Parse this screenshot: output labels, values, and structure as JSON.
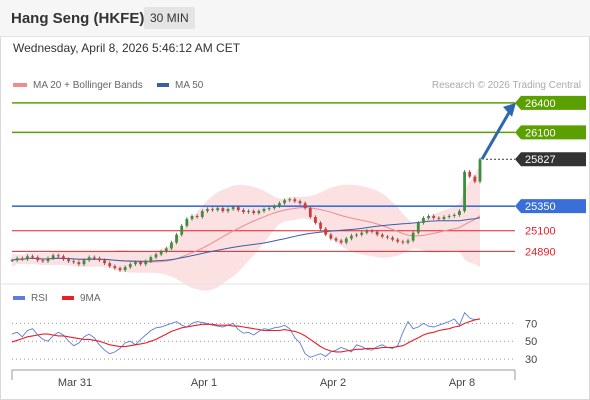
{
  "header": {
    "title": "Hang Seng (HKFE)",
    "interval": "30 MIN"
  },
  "datetime": "Wednesday, April 8, 2026 5:46:12 AM CET",
  "legend": {
    "ma20": {
      "label": "MA 20 + Bollinger Bands",
      "color": "#f08c8c"
    },
    "ma50": {
      "label": "MA 50",
      "color": "#3b5ea8"
    }
  },
  "attribution": "Research © 2026 Trading Central",
  "rsi_legend": {
    "rsi": {
      "label": "RSI",
      "color": "#5b7fd6"
    },
    "ma9": {
      "label": "9MA",
      "color": "#e8202a"
    }
  },
  "chart_data": [
    {
      "type": "candlestick",
      "y_range": [
        24650,
        26480
      ],
      "levels": [
        {
          "value": 26400,
          "label": "26400",
          "color": "#5aa000",
          "kind": "resistance"
        },
        {
          "value": 26100,
          "label": "26100",
          "color": "#5aa000",
          "kind": "resistance"
        },
        {
          "value": 25827,
          "label": "25827",
          "color": "#333333",
          "kind": "last"
        },
        {
          "value": 25350,
          "label": "25350",
          "color": "#3a6fd8",
          "kind": "pivot"
        },
        {
          "value": 25100,
          "label": "25100",
          "color": "#e8202a",
          "kind": "support"
        },
        {
          "value": 24890,
          "label": "24890",
          "color": "#e8202a",
          "kind": "support"
        }
      ],
      "x_tick_labels": [
        "Mar 31",
        "Apr 1",
        "Apr 2",
        "Apr 8"
      ],
      "price": [
        24800,
        24820,
        24810,
        24840,
        24830,
        24800,
        24790,
        24820,
        24850,
        24840,
        24810,
        24790,
        24780,
        24760,
        24800,
        24830,
        24820,
        24800,
        24770,
        24740,
        24720,
        24700,
        24730,
        24760,
        24780,
        24760,
        24790,
        24830,
        24860,
        24890,
        24920,
        24980,
        25060,
        25150,
        25220,
        25250,
        25240,
        25300,
        25320,
        25310,
        25330,
        25300,
        25320,
        25340,
        25310,
        25290,
        25300,
        25280,
        25300,
        25320,
        25330,
        25350,
        25380,
        25410,
        25420,
        25400,
        25380,
        25330,
        25240,
        25180,
        25120,
        25060,
        25020,
        25000,
        24980,
        25020,
        25050,
        25060,
        25080,
        25100,
        25090,
        25060,
        25040,
        25030,
        25010,
        24990,
        24980,
        25000,
        25080,
        25180,
        25230,
        25250,
        25230,
        25220,
        25240,
        25250,
        25260,
        25300,
        25700,
        25650,
        25600,
        25827
      ]
    },
    {
      "type": "line",
      "name": "RSI panel",
      "y_ticks": [
        30,
        50,
        70
      ],
      "series": [
        {
          "name": "RSI",
          "values": [
            58,
            60,
            55,
            62,
            64,
            57,
            52,
            50,
            56,
            60,
            57,
            50,
            45,
            48,
            55,
            58,
            54,
            46,
            40,
            36,
            38,
            42,
            48,
            50,
            46,
            52,
            57,
            62,
            65,
            66,
            68,
            70,
            72,
            68,
            66,
            70,
            72,
            71,
            70,
            68,
            67,
            66,
            68,
            70,
            63,
            59,
            60,
            57,
            61,
            64,
            63,
            65,
            66,
            68,
            64,
            54,
            48,
            36,
            32,
            34,
            36,
            33,
            38,
            40,
            43,
            41,
            38,
            46,
            44,
            41,
            40,
            44,
            46,
            43,
            42,
            45,
            60,
            72,
            64,
            66,
            70,
            67,
            66,
            68,
            70,
            72,
            75,
            68,
            82,
            76,
            74,
            75
          ]
        },
        {
          "name": "9MA",
          "values": [
            49,
            51,
            53,
            55,
            56,
            57,
            58,
            58,
            57,
            56,
            56,
            55,
            54,
            53,
            52,
            52,
            51,
            50,
            48,
            46,
            45,
            44,
            44,
            45,
            46,
            47,
            48,
            50,
            52,
            55,
            58,
            61,
            63,
            65,
            66,
            67,
            68,
            69,
            69,
            69,
            68,
            68,
            68,
            67,
            67,
            66,
            65,
            64,
            63,
            62,
            62,
            62,
            62,
            63,
            62,
            61,
            59,
            56,
            52,
            48,
            44,
            41,
            39,
            38,
            38,
            39,
            40,
            41,
            41,
            42,
            42,
            42,
            43,
            43,
            43,
            44,
            45,
            48,
            51,
            54,
            57,
            59,
            60,
            62,
            63,
            64,
            66,
            67,
            70,
            72,
            74,
            75
          ]
        }
      ]
    }
  ]
}
